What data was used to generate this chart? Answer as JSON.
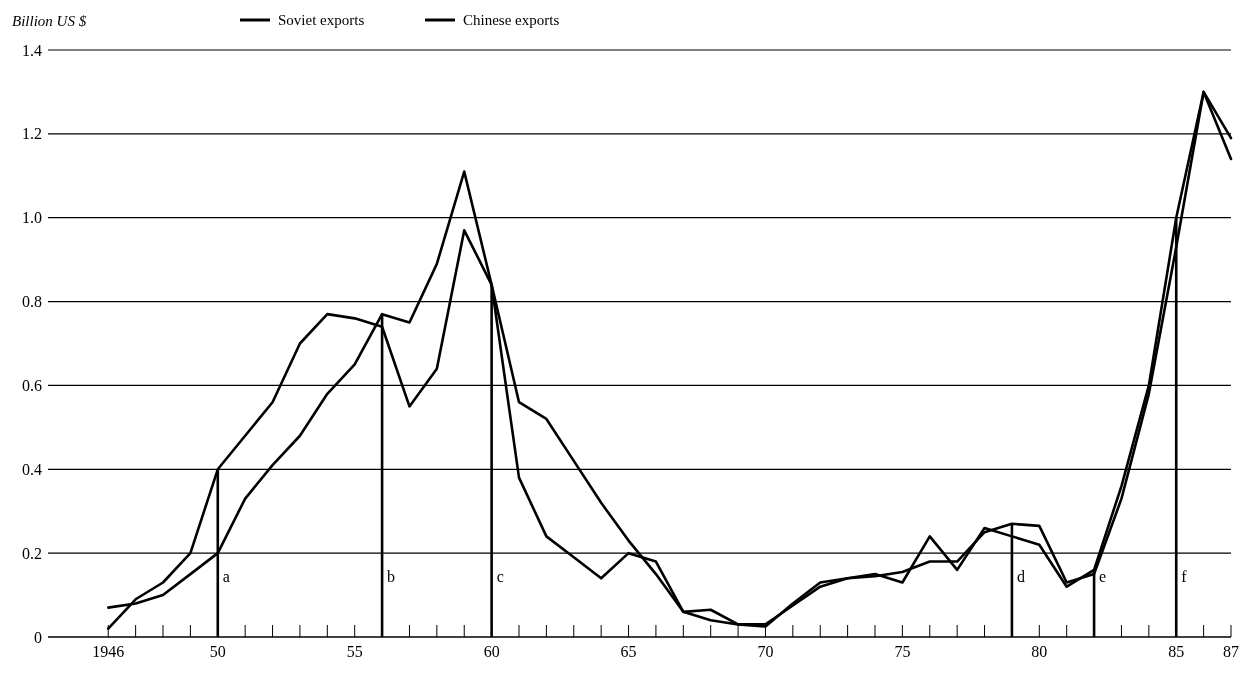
{
  "chart_data": {
    "type": "line",
    "ylabel": "Billion US $",
    "legend": "top",
    "grid": "y",
    "marker": "none",
    "line_style": "solid",
    "x": [
      1946,
      1947,
      1948,
      1949,
      1950,
      1951,
      1952,
      1953,
      1954,
      1955,
      1956,
      1957,
      1958,
      1959,
      1960,
      1961,
      1962,
      1963,
      1964,
      1965,
      1966,
      1967,
      1968,
      1969,
      1970,
      1971,
      1972,
      1973,
      1974,
      1975,
      1976,
      1977,
      1978,
      1979,
      1980,
      1981,
      1982,
      1983,
      1984,
      1985,
      1986,
      1987
    ],
    "series": [
      {
        "name": "Soviet exports",
        "color": "#000000",
        "values": [
          0.02,
          0.09,
          0.13,
          0.2,
          0.4,
          0.48,
          0.56,
          0.7,
          0.77,
          0.76,
          0.74,
          0.55,
          0.64,
          0.97,
          0.84,
          0.38,
          0.24,
          0.19,
          0.14,
          0.2,
          0.18,
          0.06,
          0.065,
          0.03,
          0.025,
          0.08,
          0.13,
          0.14,
          0.15,
          0.13,
          0.24,
          0.16,
          0.26,
          0.24,
          0.22,
          0.12,
          0.16,
          0.36,
          0.6,
          1.0,
          1.3,
          1.14
        ]
      },
      {
        "name": "Chinese exports",
        "color": "#000000",
        "values": [
          0.07,
          0.08,
          0.1,
          0.15,
          0.2,
          0.33,
          0.41,
          0.48,
          0.58,
          0.65,
          0.77,
          0.75,
          0.89,
          1.11,
          0.84,
          0.56,
          0.52,
          0.42,
          0.32,
          0.23,
          0.15,
          0.06,
          0.04,
          0.03,
          0.03,
          0.075,
          0.12,
          0.14,
          0.145,
          0.155,
          0.18,
          0.18,
          0.25,
          0.27,
          0.265,
          0.13,
          0.15,
          0.33,
          0.58,
          0.93,
          1.3,
          1.19
        ]
      }
    ],
    "xlim": [
      1943.8,
      1987
    ],
    "xticks": [
      {
        "value": 1946,
        "label": "1946"
      },
      {
        "value": 1947,
        "label": null
      },
      {
        "value": 1948,
        "label": null
      },
      {
        "value": 1949,
        "label": null
      },
      {
        "value": 1950,
        "label": "50"
      },
      {
        "value": 1951,
        "label": null
      },
      {
        "value": 1952,
        "label": null
      },
      {
        "value": 1953,
        "label": null
      },
      {
        "value": 1954,
        "label": null
      },
      {
        "value": 1955,
        "label": "55"
      },
      {
        "value": 1956,
        "label": null
      },
      {
        "value": 1957,
        "label": null
      },
      {
        "value": 1958,
        "label": null
      },
      {
        "value": 1959,
        "label": null
      },
      {
        "value": 1960,
        "label": "60"
      },
      {
        "value": 1961,
        "label": null
      },
      {
        "value": 1962,
        "label": null
      },
      {
        "value": 1963,
        "label": null
      },
      {
        "value": 1964,
        "label": null
      },
      {
        "value": 1965,
        "label": "65"
      },
      {
        "value": 1966,
        "label": null
      },
      {
        "value": 1967,
        "label": null
      },
      {
        "value": 1968,
        "label": null
      },
      {
        "value": 1969,
        "label": null
      },
      {
        "value": 1970,
        "label": "70"
      },
      {
        "value": 1971,
        "label": null
      },
      {
        "value": 1972,
        "label": null
      },
      {
        "value": 1973,
        "label": null
      },
      {
        "value": 1974,
        "label": null
      },
      {
        "value": 1975,
        "label": "75"
      },
      {
        "value": 1976,
        "label": null
      },
      {
        "value": 1977,
        "label": null
      },
      {
        "value": 1978,
        "label": null
      },
      {
        "value": 1979,
        "label": null
      },
      {
        "value": 1980,
        "label": "80"
      },
      {
        "value": 1981,
        "label": null
      },
      {
        "value": 1982,
        "label": null
      },
      {
        "value": 1983,
        "label": null
      },
      {
        "value": 1984,
        "label": null
      },
      {
        "value": 1985,
        "label": "85"
      },
      {
        "value": 1986,
        "label": null
      },
      {
        "value": 1987,
        "label": "87"
      }
    ],
    "ylim": [
      0,
      1.4
    ],
    "yticks": [
      {
        "value": 0,
        "label": "0"
      },
      0.2,
      0.4,
      0.6,
      0.8,
      {
        "value": 1.0,
        "label": "1.0"
      },
      1.2,
      1.4
    ],
    "ref_lines": [
      {
        "axis": "x",
        "value": 1950,
        "label": "a"
      },
      {
        "axis": "x",
        "value": 1956,
        "label": "b"
      },
      {
        "axis": "x",
        "value": 1960,
        "label": "c"
      },
      {
        "axis": "x",
        "value": 1979,
        "label": "d"
      },
      {
        "axis": "x",
        "value": 1982,
        "label": "e"
      },
      {
        "axis": "x",
        "value": 1985,
        "label": "f"
      }
    ]
  }
}
